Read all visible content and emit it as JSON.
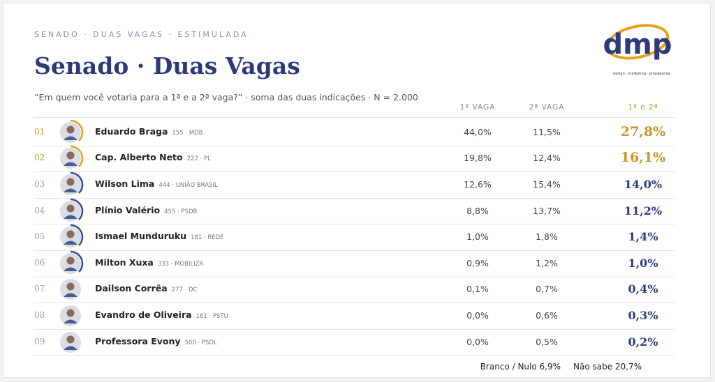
{
  "header": {
    "overline": "SENADO · DUAS VAGAS · ESTIMULADA",
    "title": "Senado · Duas Vagas",
    "subtitle": "“Em quem você votaria para a 1ª e a 2ª vaga?” · soma das duas indicações · N = 2.000"
  },
  "logo": {
    "name": "dmp",
    "tagline": "design · marketing · propaganda"
  },
  "table": {
    "columns": [
      "1ª VAGA",
      "2ª VAGA",
      "1ª e 2ª"
    ],
    "rows": [
      [
        "01",
        "Eduardo Braga",
        "155 · MDB",
        "44,0%",
        "11,5%",
        "27,8%"
      ],
      [
        "02",
        "Cap. Alberto Neto",
        "222 · PL",
        "19,8%",
        "12,4%",
        "16,1%"
      ],
      [
        "03",
        "Wilson Lima",
        "444 · UNIÃO BRASIL",
        "12,6%",
        "15,4%",
        "14,0%"
      ],
      [
        "04",
        "Plínio Valério",
        "455 · PSDB",
        "8,8%",
        "13,7%",
        "11,2%"
      ],
      [
        "05",
        "Ismael Munduruku",
        "181 · REDE",
        "1,0%",
        "1,8%",
        "1,4%"
      ],
      [
        "06",
        "Milton Xuxa",
        "333 · MOBILIZA",
        "0,9%",
        "1,2%",
        "1,0%"
      ],
      [
        "07",
        "Dailson Corrêa",
        "277 · DC",
        "0,1%",
        "0,7%",
        "0,4%"
      ],
      [
        "08",
        "Evandro de Oliveira",
        "161 · PSTU",
        "0,0%",
        "0,6%",
        "0,3%"
      ],
      [
        "09",
        "Professora Evony",
        "500 · PSOL",
        "0,0%",
        "0,5%",
        "0,2%"
      ]
    ]
  },
  "footer": {
    "blank_null": "Branco / Nulo 6,9%",
    "unsure": "Não sabe 20,7%"
  }
}
